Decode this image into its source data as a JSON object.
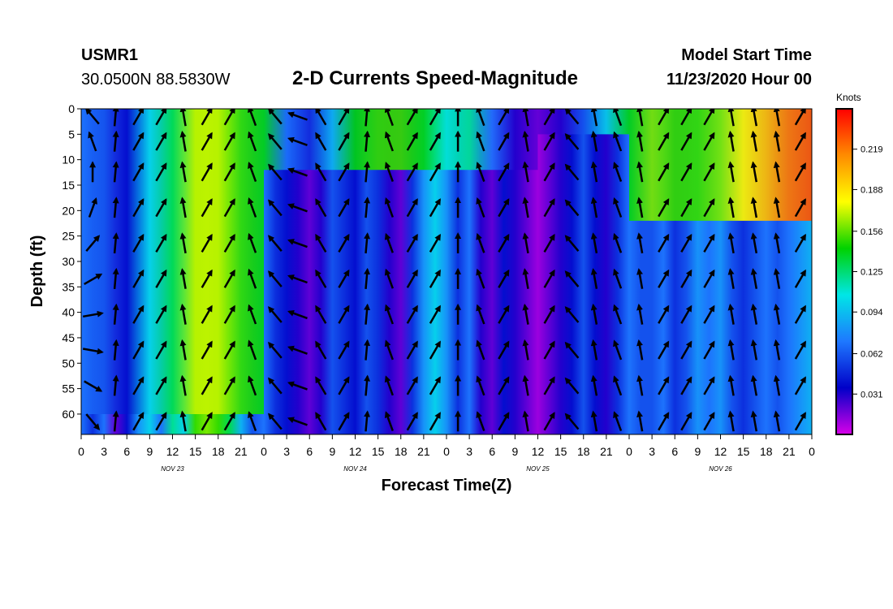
{
  "header": {
    "station": "USMR1",
    "coords": "30.0500N 88.5830W",
    "title": "2-D Currents Speed-Magnitude",
    "start_label": "Model Start Time",
    "start_value": "11/23/2020 Hour 00"
  },
  "colorbar": {
    "units": "Knots",
    "ticks": [
      "0.031",
      "0.062",
      "0.094",
      "0.125",
      "0.156",
      "0.188",
      "0.219"
    ],
    "tick_values": [
      0.031,
      0.062,
      0.094,
      0.125,
      0.156,
      0.188,
      0.219
    ],
    "range": [
      0,
      0.25
    ],
    "colors": [
      "#d800e8",
      "#0000c8",
      "#1e78ff",
      "#00e6e6",
      "#00d200",
      "#ffff00",
      "#ff8c00",
      "#ff0000"
    ]
  },
  "chart_data": {
    "type": "heatmap",
    "title": "2-D Currents Speed-Magnitude",
    "xlabel": "Forecast Time(Z)",
    "ylabel": "Depth (ft)",
    "x_hours_range": [
      0,
      96
    ],
    "ylim": [
      0,
      64
    ],
    "y_ticks": [
      "0",
      "5",
      "10",
      "15",
      "20",
      "25",
      "30",
      "35",
      "40",
      "45",
      "50",
      "55",
      "60"
    ],
    "x_ticks": [
      "0",
      "3",
      "6",
      "9",
      "12",
      "15",
      "18",
      "21",
      "0",
      "3",
      "6",
      "9",
      "12",
      "15",
      "18",
      "21",
      "0",
      "3",
      "6",
      "9",
      "12",
      "15",
      "18",
      "21",
      "0",
      "3",
      "6",
      "9",
      "12",
      "15",
      "18",
      "21",
      "0"
    ],
    "day_labels": [
      {
        "label": "NOV 23",
        "hour": 12
      },
      {
        "label": "NOV 24",
        "hour": 36
      },
      {
        "label": "NOV 25",
        "hour": 60
      },
      {
        "label": "NOV 26",
        "hour": 84
      }
    ],
    "speed_profile": [
      {
        "hour": 0,
        "knots": 0.07
      },
      {
        "hour": 1.5,
        "knots": 0.05
      },
      {
        "hour": 3,
        "knots": 0.07
      },
      {
        "hour": 4.5,
        "knots": 0.02
      },
      {
        "hour": 6,
        "knots": 0.04
      },
      {
        "hour": 7.5,
        "knots": 0.08
      },
      {
        "hour": 9,
        "knots": 0.1
      },
      {
        "hour": 10.5,
        "knots": 0.07
      },
      {
        "hour": 12,
        "knots": 0.12
      },
      {
        "hour": 13.5,
        "knots": 0.1
      },
      {
        "hour": 15,
        "knots": 0.15
      },
      {
        "hour": 16.5,
        "knots": 0.16
      },
      {
        "hour": 18,
        "knots": 0.15
      },
      {
        "hour": 19.5,
        "knots": 0.13
      },
      {
        "hour": 21,
        "knots": 0.09
      },
      {
        "hour": 22.5,
        "knots": 0.06
      },
      {
        "hour": 24,
        "knots": 0.07
      },
      {
        "hour": 25.5,
        "knots": 0.05
      },
      {
        "hour": 27,
        "knots": 0.04
      },
      {
        "hour": 28.5,
        "knots": 0.03
      },
      {
        "hour": 30,
        "knots": 0.02
      },
      {
        "hour": 31.5,
        "knots": 0.03
      },
      {
        "hour": 33,
        "knots": 0.06
      },
      {
        "hour": 34.5,
        "knots": 0.05
      },
      {
        "hour": 36,
        "knots": 0.04
      },
      {
        "hour": 37.5,
        "knots": 0.06
      },
      {
        "hour": 39,
        "knots": 0.05
      },
      {
        "hour": 40.5,
        "knots": 0.03
      },
      {
        "hour": 42,
        "knots": 0.02
      },
      {
        "hour": 43.5,
        "knots": 0.05
      },
      {
        "hour": 45,
        "knots": 0.08
      },
      {
        "hour": 46.5,
        "knots": 0.1
      },
      {
        "hour": 48,
        "knots": 0.08
      },
      {
        "hour": 49.5,
        "knots": 0.05
      },
      {
        "hour": 51,
        "knots": 0.07
      },
      {
        "hour": 52.5,
        "knots": 0.03
      },
      {
        "hour": 54,
        "knots": 0.02
      },
      {
        "hour": 55.5,
        "knots": 0.04
      },
      {
        "hour": 57,
        "knots": 0.03
      },
      {
        "hour": 58.5,
        "knots": 0.02
      },
      {
        "hour": 60,
        "knots": 0.01
      },
      {
        "hour": 61.5,
        "knots": 0.02
      },
      {
        "hour": 63,
        "knots": 0.03
      },
      {
        "hour": 64.5,
        "knots": 0.04
      },
      {
        "hour": 66,
        "knots": 0.06
      },
      {
        "hour": 67.5,
        "knots": 0.04
      },
      {
        "hour": 69,
        "knots": 0.03
      },
      {
        "hour": 70.5,
        "knots": 0.05
      },
      {
        "hour": 72,
        "knots": 0.07
      },
      {
        "hour": 73.5,
        "knots": 0.06
      },
      {
        "hour": 75,
        "knots": 0.06
      },
      {
        "hour": 76.5,
        "knots": 0.07
      },
      {
        "hour": 78,
        "knots": 0.05
      },
      {
        "hour": 79.5,
        "knots": 0.06
      },
      {
        "hour": 81,
        "knots": 0.08
      },
      {
        "hour": 82.5,
        "knots": 0.07
      },
      {
        "hour": 84,
        "knots": 0.08
      },
      {
        "hour": 85.5,
        "knots": 0.06
      },
      {
        "hour": 87,
        "knots": 0.05
      },
      {
        "hour": 88.5,
        "knots": 0.06
      },
      {
        "hour": 90,
        "knots": 0.07
      },
      {
        "hour": 91.5,
        "knots": 0.06
      },
      {
        "hour": 93,
        "knots": 0.07
      },
      {
        "hour": 94.5,
        "knots": 0.08
      },
      {
        "hour": 96,
        "knots": 0.09
      }
    ],
    "surface_profile": [
      {
        "hour": 0,
        "knots": 0.07
      },
      {
        "hour": 3,
        "knots": 0.06
      },
      {
        "hour": 6,
        "knots": 0.04
      },
      {
        "hour": 9,
        "knots": 0.1
      },
      {
        "hour": 12,
        "knots": 0.13
      },
      {
        "hour": 15,
        "knots": 0.17
      },
      {
        "hour": 18,
        "knots": 0.17
      },
      {
        "hour": 21,
        "knots": 0.15
      },
      {
        "hour": 24,
        "knots": 0.14
      },
      {
        "hour": 27,
        "knots": 0.07
      },
      {
        "hour": 30,
        "knots": 0.05
      },
      {
        "hour": 33,
        "knots": 0.09
      },
      {
        "hour": 36,
        "knots": 0.14
      },
      {
        "hour": 39,
        "knots": 0.15
      },
      {
        "hour": 42,
        "knots": 0.15
      },
      {
        "hour": 45,
        "knots": 0.14
      },
      {
        "hour": 48,
        "knots": 0.11
      },
      {
        "hour": 51,
        "knots": 0.12
      },
      {
        "hour": 54,
        "knots": 0.07
      },
      {
        "hour": 57,
        "knots": 0.03
      },
      {
        "hour": 60,
        "knots": 0.02
      },
      {
        "hour": 63,
        "knots": 0.03
      },
      {
        "hour": 66,
        "knots": 0.06
      },
      {
        "hour": 69,
        "knots": 0.1
      },
      {
        "hour": 72,
        "knots": 0.14
      },
      {
        "hour": 75,
        "knots": 0.16
      },
      {
        "hour": 78,
        "knots": 0.15
      },
      {
        "hour": 81,
        "knots": 0.15
      },
      {
        "hour": 84,
        "knots": 0.16
      },
      {
        "hour": 87,
        "knots": 0.18
      },
      {
        "hour": 90,
        "knots": 0.2
      },
      {
        "hour": 93,
        "knots": 0.22
      },
      {
        "hour": 96,
        "knots": 0.23
      }
    ],
    "surface_layer_depth_ft": {
      "hours_0_24": 60,
      "hours_24_60": 12,
      "hours_60_72": 5,
      "hours_72_96": 22
    },
    "vector_rows_depth_ft": [
      1.5,
      6.5,
      12.5,
      19.5,
      26.5,
      33.5,
      40.5,
      47.5,
      54.5,
      61.5
    ],
    "vector_direction_deg": [
      [
        230,
        275,
        300,
        300,
        260,
        300,
        300,
        250,
        230,
        200,
        240,
        300,
        275,
        250,
        300,
        300,
        270,
        250,
        300,
        260,
        300,
        230,
        260,
        250,
        260,
        300,
        300,
        300,
        260,
        260,
        260,
        300
      ],
      [
        250,
        275,
        300,
        300,
        260,
        300,
        300,
        250,
        230,
        200,
        240,
        300,
        275,
        250,
        300,
        300,
        270,
        250,
        300,
        260,
        300,
        230,
        260,
        250,
        260,
        300,
        300,
        300,
        260,
        260,
        260,
        300
      ],
      [
        270,
        275,
        300,
        300,
        260,
        300,
        300,
        250,
        230,
        200,
        240,
        300,
        275,
        250,
        300,
        300,
        270,
        250,
        300,
        260,
        300,
        230,
        260,
        250,
        260,
        300,
        300,
        300,
        260,
        260,
        260,
        300
      ],
      [
        290,
        275,
        300,
        300,
        260,
        300,
        300,
        250,
        230,
        200,
        240,
        300,
        275,
        250,
        300,
        300,
        270,
        250,
        300,
        260,
        300,
        230,
        260,
        250,
        260,
        300,
        300,
        300,
        260,
        260,
        260,
        300
      ],
      [
        310,
        275,
        300,
        300,
        260,
        300,
        300,
        250,
        230,
        200,
        240,
        300,
        275,
        250,
        300,
        300,
        270,
        250,
        300,
        260,
        300,
        230,
        260,
        250,
        260,
        300,
        300,
        300,
        260,
        260,
        260,
        300
      ],
      [
        330,
        275,
        300,
        300,
        260,
        300,
        300,
        250,
        230,
        200,
        240,
        300,
        275,
        250,
        300,
        300,
        270,
        250,
        300,
        260,
        300,
        230,
        260,
        250,
        260,
        300,
        300,
        300,
        260,
        260,
        260,
        300
      ],
      [
        350,
        275,
        300,
        300,
        260,
        300,
        300,
        250,
        230,
        200,
        240,
        300,
        275,
        250,
        300,
        300,
        270,
        250,
        300,
        260,
        300,
        230,
        260,
        250,
        260,
        300,
        300,
        300,
        260,
        260,
        260,
        300
      ],
      [
        10,
        275,
        300,
        300,
        260,
        300,
        300,
        250,
        230,
        200,
        240,
        300,
        275,
        250,
        300,
        300,
        270,
        250,
        300,
        260,
        300,
        230,
        260,
        250,
        260,
        300,
        300,
        300,
        260,
        260,
        260,
        300
      ],
      [
        30,
        275,
        300,
        300,
        260,
        300,
        300,
        250,
        230,
        200,
        240,
        300,
        275,
        250,
        300,
        300,
        270,
        250,
        300,
        260,
        300,
        230,
        260,
        250,
        260,
        300,
        300,
        300,
        260,
        260,
        260,
        300
      ],
      [
        50,
        275,
        300,
        300,
        260,
        300,
        300,
        250,
        230,
        200,
        240,
        300,
        275,
        250,
        300,
        300,
        270,
        250,
        300,
        260,
        300,
        230,
        260,
        250,
        260,
        300,
        300,
        300,
        260,
        260,
        260,
        300
      ]
    ]
  }
}
